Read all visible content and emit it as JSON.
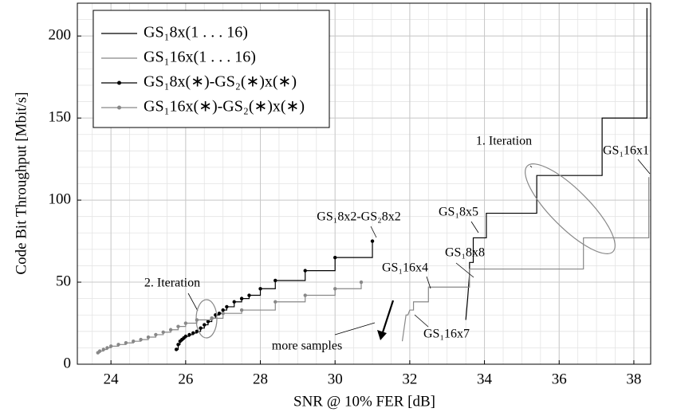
{
  "chart_data": {
    "type": "line",
    "xlabel": "SNR @ 10% FER [dB]",
    "ylabel": "Code Bit Throughput [Mbit/s]",
    "xlim": [
      23.1,
      38.45
    ],
    "ylim": [
      0,
      220
    ],
    "xticks": [
      24,
      26,
      28,
      30,
      32,
      34,
      36,
      38
    ],
    "yticks": [
      0,
      50,
      100,
      150,
      200
    ],
    "grid": true,
    "minor_grid": {
      "x": 0.5,
      "y": 10
    },
    "legend": "upper left",
    "series": [
      {
        "name": "GS₁8x(1 . . . 16)",
        "color": "#000000",
        "marker": false,
        "x": [
          33.5,
          33.55,
          33.6,
          33.6,
          33.7,
          33.7,
          34.05,
          34.05,
          35.4,
          35.4,
          37.15,
          37.15,
          38.35,
          38.35
        ],
        "values": [
          27,
          40,
          55,
          62,
          62,
          77,
          77,
          92,
          92,
          115,
          115,
          150,
          150,
          217
        ]
      },
      {
        "name": "GS₁16x(1 . . . 16)",
        "color": "#888888",
        "marker": false,
        "x": [
          31.8,
          31.85,
          31.9,
          31.95,
          32.0,
          32.1,
          32.1,
          32.5,
          32.5,
          33.6,
          33.6,
          36.65,
          36.65,
          38.4,
          38.4
        ],
        "values": [
          14,
          22,
          30,
          30,
          33,
          33,
          38,
          38,
          47,
          47,
          58,
          58,
          77,
          77,
          114
        ]
      },
      {
        "name": "GS₁8x(∗)-GS₂(∗)x(∗)",
        "color": "#000000",
        "marker": true,
        "drawstyle": "steps-post",
        "x": [
          25.75,
          25.8,
          25.85,
          25.9,
          25.95,
          26.0,
          26.1,
          26.2,
          26.3,
          26.4,
          26.5,
          26.6,
          26.7,
          26.8,
          26.9,
          27.0,
          27.1,
          27.3,
          27.5,
          27.7,
          28.0,
          28.4,
          29.2,
          30.0,
          31.0
        ],
        "values": [
          9,
          12,
          14,
          15,
          16,
          17,
          18,
          19,
          20,
          22,
          24,
          26,
          28,
          30,
          31,
          33,
          35,
          38,
          40,
          42,
          46,
          51,
          57,
          65,
          75
        ]
      },
      {
        "name": "GS₁16x(∗)-GS₂(∗)x(∗)",
        "color": "#888888",
        "marker": true,
        "drawstyle": "steps-post",
        "x": [
          23.65,
          23.7,
          23.8,
          23.9,
          24.0,
          24.2,
          24.4,
          24.6,
          24.8,
          25.0,
          25.2,
          25.4,
          25.6,
          25.8,
          26.0,
          26.3,
          26.7,
          27.0,
          27.5,
          28.4,
          29.2,
          30.0,
          30.7
        ],
        "values": [
          7,
          8,
          9,
          10,
          11,
          12,
          13,
          14,
          15,
          16.5,
          18,
          19.5,
          21,
          23,
          25,
          27,
          28,
          31,
          33,
          38,
          42,
          46,
          50
        ]
      }
    ],
    "annotations": [
      "1. Iteration",
      "GS₁16x1",
      "GS₁8x2-GS₂8x2",
      "GS₁8x5",
      "GS₁8x8",
      "GS₁16x4",
      "2. Iteration",
      "more samples",
      "GS₁16x7"
    ]
  }
}
